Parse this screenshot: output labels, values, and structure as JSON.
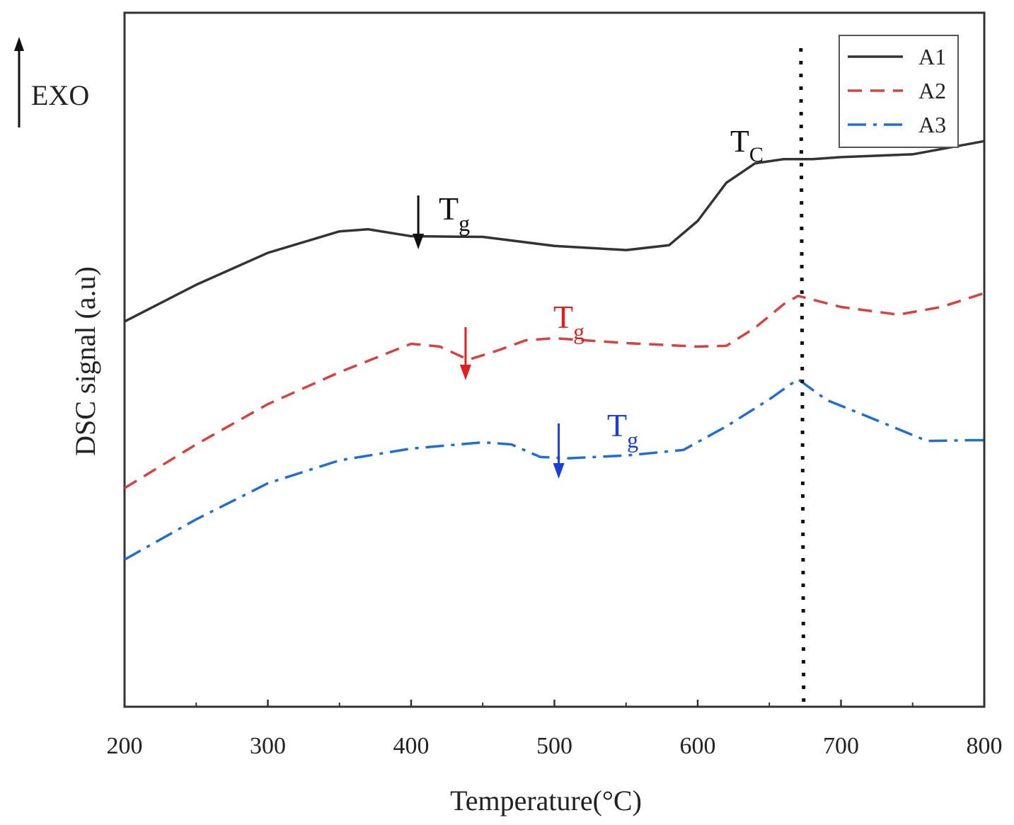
{
  "chart_data": {
    "type": "line",
    "title": "",
    "xlabel": "Temperature(°C)",
    "ylabel": "DSC signal (a.u)",
    "xlim": [
      200,
      800
    ],
    "ylim": [
      0,
      100
    ],
    "x_ticks": [
      200,
      300,
      400,
      500,
      600,
      700,
      800
    ],
    "y_ticks_shown": false,
    "grid": false,
    "legend_position": "top-right",
    "exo_label": "EXO",
    "series": [
      {
        "name": "A1",
        "color": "#333333",
        "style": "solid",
        "x": [
          200,
          250,
          300,
          350,
          370,
          400,
          450,
          500,
          550,
          580,
          600,
          620,
          640,
          660,
          680,
          700,
          750,
          800
        ],
        "y": [
          55.5,
          60.8,
          65.4,
          68.5,
          68.8,
          67.8,
          67.7,
          66.4,
          65.8,
          66.5,
          70,
          75.5,
          78.3,
          78.9,
          78.9,
          79.2,
          79.6,
          81.5
        ]
      },
      {
        "name": "A2",
        "color": "#d94040",
        "style": "dashed",
        "x": [
          200,
          250,
          300,
          350,
          400,
          420,
          440,
          460,
          480,
          500,
          550,
          600,
          620,
          640,
          660,
          670,
          700,
          740,
          770,
          800
        ],
        "y": [
          31.5,
          37.8,
          43.6,
          48.2,
          52.3,
          51.9,
          50,
          51.3,
          52.8,
          53.1,
          52.4,
          51.9,
          52,
          54.6,
          58,
          59.2,
          57.6,
          56.5,
          57.6,
          59.6
        ]
      },
      {
        "name": "A3",
        "color": "#1f6fd0",
        "style": "dashdot",
        "x": [
          200,
          250,
          300,
          350,
          400,
          450,
          470,
          490,
          510,
          550,
          590,
          620,
          650,
          670,
          690,
          720,
          760,
          790,
          800
        ],
        "y": [
          21.2,
          27,
          32.2,
          35.5,
          37.2,
          38.1,
          37.8,
          36,
          35.8,
          36.2,
          37,
          40.4,
          44.3,
          47.2,
          44.2,
          41.7,
          38.3,
          38.4,
          38.4
        ]
      }
    ],
    "reference_line": {
      "x": 672,
      "style": "dotted",
      "label_main": "T",
      "label_sub": "C"
    },
    "annotations": [
      {
        "series": "A1",
        "arrow_x": 405,
        "label_main": "T",
        "label_sub": "g",
        "color": "#111111"
      },
      {
        "series": "A2",
        "arrow_x": 438,
        "label_main": "T",
        "label_sub": "g",
        "color": "#e02020"
      },
      {
        "series": "A3",
        "arrow_x": 503,
        "label_main": "T",
        "label_sub": "g",
        "color": "#1a3ed6"
      }
    ]
  }
}
